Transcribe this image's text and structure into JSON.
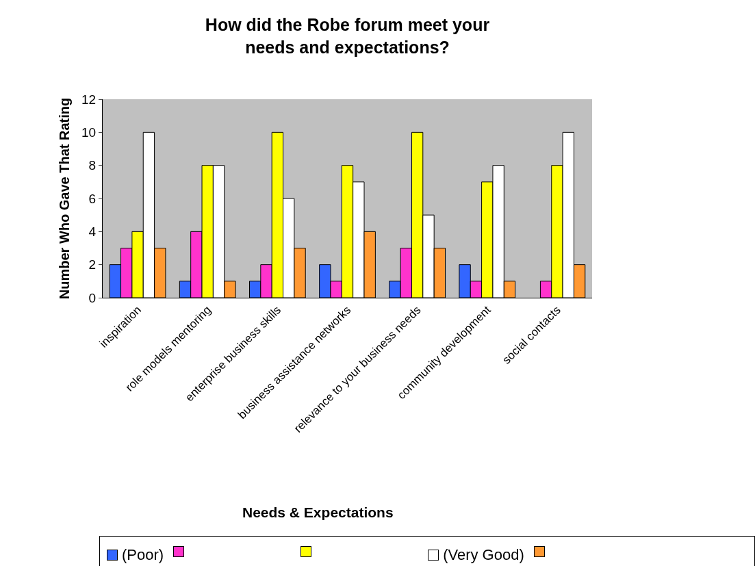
{
  "chart_data": {
    "type": "bar",
    "title": "How did the Robe forum meet your needs and expectations?",
    "xlabel": "Needs & Expectations",
    "ylabel": "Number Who Gave That Rating",
    "categories": [
      "inspiration",
      "role models mentoring",
      "enterprise business skills",
      "business assistance networks",
      "relevance to your business needs",
      "community development",
      "social contacts"
    ],
    "series": [
      {
        "name": "(Poor)",
        "color": "#3366ff",
        "values": [
          2,
          1,
          1,
          2,
          1,
          2,
          null
        ]
      },
      {
        "color": "#ff33cc",
        "values": [
          3,
          4,
          2,
          1,
          3,
          1,
          1
        ]
      },
      {
        "color": "#ffff00",
        "values": [
          4,
          8,
          10,
          8,
          10,
          7,
          8
        ]
      },
      {
        "name": "(Very Good)",
        "color": "#ffffff",
        "values": [
          10,
          8,
          6,
          7,
          5,
          8,
          10
        ]
      },
      {
        "color": "#ff9933",
        "values": [
          3,
          1,
          3,
          4,
          3,
          1,
          2
        ]
      }
    ],
    "ylim": [
      0,
      12
    ],
    "yticks": [
      0,
      2,
      4,
      6,
      8,
      10,
      12
    ],
    "grid": false,
    "legend": "bottom"
  }
}
